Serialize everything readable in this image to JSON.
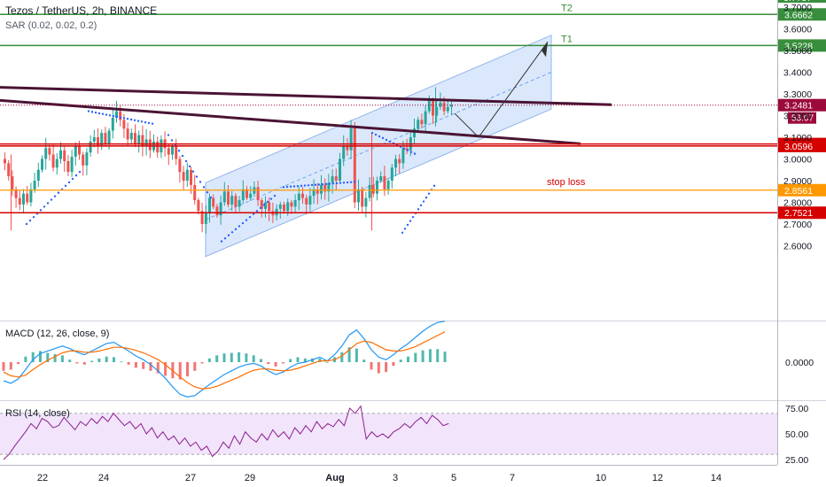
{
  "header": {
    "symbol_line": "Tezos / TetherUS, 2h, BINANCE",
    "indicator_line": "SAR (0.02, 0.02, 0.2)"
  },
  "panes": {
    "macd_label": "MACD (12, 26, close, 9)",
    "rsi_label": "RSI (14, close)"
  },
  "colors": {
    "up": "#26a69a",
    "down": "#ef5350",
    "sar": "#2962ff",
    "trend_line": "#4a1434",
    "target": "#388e3c",
    "support": "#d50000",
    "stop": "#ff9800",
    "channel_fill": "#cfe0fb",
    "macd_line": "#2196f3",
    "signal_line": "#ff6d00",
    "rsi_line": "#8e1e8c",
    "rsi_band": "#f1e4fb"
  },
  "chart_data": [
    {
      "type": "candlestick",
      "title": "Tezos / TetherUS, 2h, BINANCE",
      "ylim": [
        2.57,
        3.78
      ],
      "price_ticks": [
        "3.7000",
        "3.6000",
        "3.5000",
        "3.4000",
        "3.3000",
        "3.2000",
        "3.1000",
        "3.0000",
        "2.9000",
        "2.8000",
        "2.7000",
        "2.6000"
      ],
      "x_ticks": [
        "22",
        "24",
        "27",
        "29",
        "Aug",
        "3",
        "5",
        "7",
        "10",
        "12",
        "14"
      ],
      "closes": [
        2.98,
        2.92,
        2.86,
        2.82,
        2.79,
        2.84,
        2.8,
        2.86,
        2.9,
        2.95,
        3.0,
        3.05,
        3.02,
        2.96,
        3.0,
        3.04,
        2.99,
        2.94,
        3.01,
        3.06,
        3.02,
        2.97,
        3.03,
        3.08,
        3.1,
        3.06,
        3.12,
        3.07,
        3.13,
        3.19,
        3.22,
        3.18,
        3.14,
        3.09,
        3.12,
        3.07,
        3.11,
        3.06,
        3.09,
        3.04,
        3.08,
        3.03,
        3.09,
        3.05,
        3.02,
        3.06,
        3.0,
        2.94,
        2.9,
        2.95,
        2.88,
        2.81,
        2.76,
        2.7,
        2.75,
        2.82,
        2.78,
        2.74,
        2.8,
        2.85,
        2.79,
        2.83,
        2.78,
        2.81,
        2.86,
        2.82,
        2.84,
        2.87,
        2.81,
        2.77,
        2.8,
        2.76,
        2.74,
        2.77,
        2.79,
        2.76,
        2.8,
        2.78,
        2.81,
        2.84,
        2.82,
        2.79,
        2.83,
        2.86,
        2.84,
        2.88,
        2.85,
        2.89,
        2.92,
        2.9,
        3.0,
        3.06,
        3.04,
        3.14,
        2.8,
        2.86,
        2.78,
        2.82,
        2.88,
        2.84,
        2.9,
        2.92,
        2.86,
        2.9,
        2.96,
        3.0,
        2.98,
        3.05,
        3.04,
        3.1,
        3.14,
        3.18,
        3.16,
        3.22,
        3.27,
        3.2,
        3.24,
        3.26,
        3.22,
        3.24,
        3.25
      ],
      "stop_label": "stop loss",
      "levels": [
        {
          "name": "T2",
          "value": "3.6662",
          "kind": "target"
        },
        {
          "name": "T1",
          "value": "3.5228",
          "kind": "target"
        },
        {
          "name": "",
          "value": "3.0690",
          "kind": "support"
        },
        {
          "name": "",
          "value": "3.0596",
          "kind": "support"
        },
        {
          "name": "stop loss",
          "value": "2.8561",
          "kind": "stop"
        },
        {
          "name": "",
          "value": "2.7521",
          "kind": "support"
        }
      ],
      "price_tag": {
        "value": "3.2481",
        "countdown": "53:07"
      },
      "partial_top_tick": "3.7787"
    },
    {
      "type": "line",
      "title": "MACD (12, 26, close, 9)",
      "ticks": [
        "0.0000"
      ],
      "series": [
        {
          "values": [
            -0.03,
            -0.034,
            -0.027,
            -0.012,
            0.004,
            0.014,
            0.018,
            0.022,
            0.026,
            0.022,
            0.016,
            0.012,
            0.018,
            0.024,
            0.03,
            0.032,
            0.025,
            0.018,
            0.01,
            0.004,
            -0.004,
            -0.014,
            -0.026,
            -0.04,
            -0.052,
            -0.056,
            -0.054,
            -0.045,
            -0.036,
            -0.028,
            -0.02,
            -0.014,
            -0.008,
            -0.004,
            -0.002,
            -0.006,
            -0.014,
            -0.02,
            -0.016,
            -0.008,
            -0.002,
            0.0,
            0.004,
            0.008,
            0.002,
            0.012,
            0.026,
            0.044,
            0.052,
            0.038,
            0.02,
            0.008,
            0.004,
            0.012,
            0.022,
            0.03,
            0.04,
            0.05,
            0.058,
            0.064,
            0.066
          ]
        },
        {
          "values": [
            -0.016,
            -0.022,
            -0.024,
            -0.021,
            -0.012,
            -0.004,
            0.003,
            0.009,
            0.015,
            0.018,
            0.018,
            0.016,
            0.016,
            0.018,
            0.021,
            0.024,
            0.024,
            0.022,
            0.019,
            0.015,
            0.01,
            0.004,
            -0.004,
            -0.014,
            -0.024,
            -0.033,
            -0.04,
            -0.043,
            -0.042,
            -0.039,
            -0.034,
            -0.029,
            -0.024,
            -0.018,
            -0.013,
            -0.011,
            -0.011,
            -0.013,
            -0.014,
            -0.013,
            -0.01,
            -0.006,
            -0.002,
            0.002,
            0.002,
            0.004,
            0.01,
            0.02,
            0.03,
            0.034,
            0.032,
            0.026,
            0.02,
            0.018,
            0.018,
            0.021,
            0.025,
            0.031,
            0.037,
            0.043,
            0.049
          ]
        }
      ]
    },
    {
      "type": "line",
      "title": "RSI (14, close)",
      "ticks": [
        "75.00",
        "50.00",
        "25.00"
      ],
      "ylim": [
        20,
        80
      ],
      "band": [
        30,
        70
      ],
      "values": [
        25,
        30,
        38,
        45,
        52,
        60,
        55,
        65,
        62,
        56,
        58,
        66,
        60,
        54,
        62,
        58,
        65,
        60,
        67,
        62,
        70,
        64,
        58,
        62,
        55,
        60,
        50,
        56,
        46,
        52,
        44,
        48,
        40,
        46,
        38,
        42,
        34,
        38,
        28,
        33,
        42,
        36,
        48,
        40,
        52,
        46,
        42,
        50,
        44,
        54,
        47,
        52,
        45,
        56,
        50,
        58,
        52,
        62,
        55,
        60,
        57,
        64,
        58,
        75,
        70,
        77,
        45,
        52,
        47,
        50,
        46,
        52,
        55,
        60,
        56,
        62,
        66,
        60,
        68,
        64,
        58,
        60
      ]
    }
  ]
}
